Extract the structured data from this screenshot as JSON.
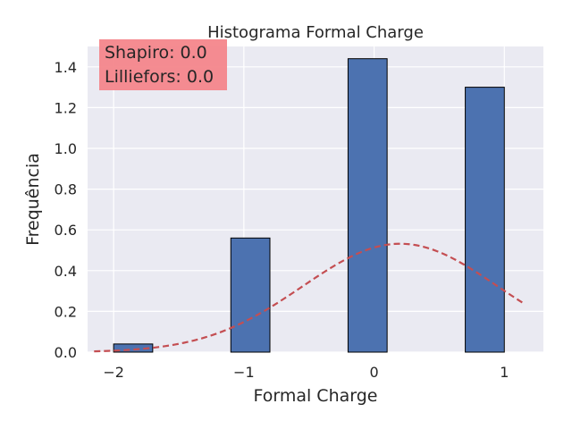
{
  "chart_data": {
    "type": "bar",
    "title": "Histograma Formal Charge",
    "xlabel": "Formal Charge",
    "ylabel": "Frequência",
    "xlim": [
      -2.2,
      1.3
    ],
    "ylim": [
      0,
      1.5
    ],
    "x_ticks": [
      -2,
      -1,
      0,
      1
    ],
    "x_tick_labels": [
      "−2",
      "−1",
      "0",
      "1"
    ],
    "y_ticks": [
      0.0,
      0.2,
      0.4,
      0.6,
      0.8,
      1.0,
      1.2,
      1.4
    ],
    "y_tick_labels": [
      "0.0",
      "0.2",
      "0.4",
      "0.6",
      "0.8",
      "1.0",
      "1.2",
      "1.4"
    ],
    "bars": [
      {
        "x0": -2.0,
        "x1": -1.7,
        "value": 0.04
      },
      {
        "x0": -1.1,
        "x1": -0.8,
        "value": 0.56
      },
      {
        "x0": -0.2,
        "x1": 0.1,
        "value": 1.44
      },
      {
        "x0": 0.7,
        "x1": 1.0,
        "value": 1.3
      }
    ],
    "normal_curve": {
      "mean": 0.2,
      "std": 0.75,
      "x_range": [
        -2.15,
        1.15
      ]
    },
    "grid": true,
    "annotation": {
      "lines": [
        "Shapiro: 0.0",
        "Lilliefors: 0.0"
      ]
    },
    "colors": {
      "bar": "#4c72b0",
      "bar_edge": "#000000",
      "curve": "#c44e52",
      "plot_bg": "#eaeaf2",
      "grid": "#ffffff",
      "annotation_bg": "#f4868b"
    }
  }
}
